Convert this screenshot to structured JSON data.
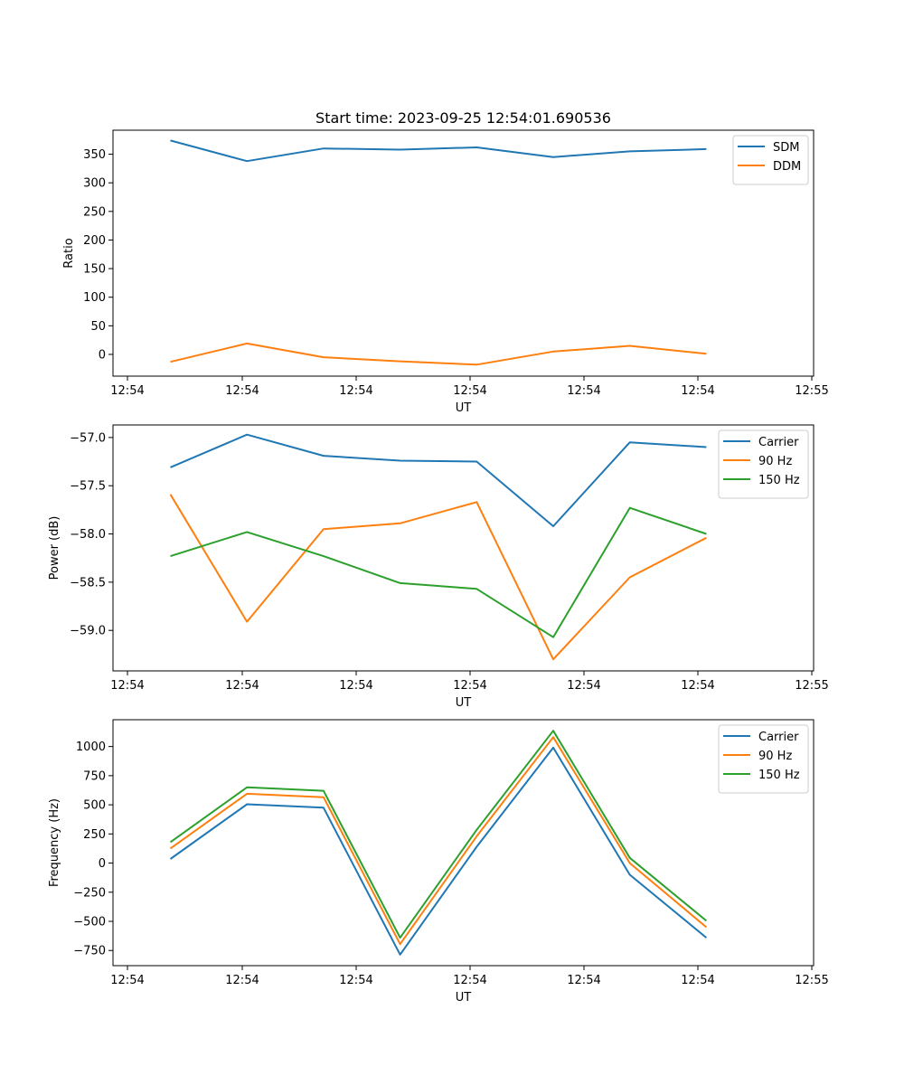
{
  "title": "Start time: 2023-09-25 12:54:01.690536",
  "chart_data": [
    {
      "type": "line",
      "xlabel": "UT",
      "ylabel": "Ratio",
      "xticks": [
        "12:54",
        "12:54",
        "12:54",
        "12:54",
        "12:54",
        "12:54",
        "12:55"
      ],
      "xlim": [
        -0.75,
        8.4
      ],
      "x": [
        0,
        1,
        2,
        3,
        4,
        5,
        6,
        7
      ],
      "ylim": [
        -38,
        392
      ],
      "yticks": [
        0,
        50,
        100,
        150,
        200,
        250,
        300,
        350
      ],
      "legend_position": "top-right",
      "series": [
        {
          "name": "SDM",
          "color": "#1f77b4",
          "values": [
            374,
            338,
            360,
            358,
            362,
            345,
            355,
            359
          ]
        },
        {
          "name": "DDM",
          "color": "#ff7f0e",
          "values": [
            -13,
            19,
            -5,
            -12,
            -18,
            5,
            15,
            1
          ]
        }
      ]
    },
    {
      "type": "line",
      "xlabel": "UT",
      "ylabel": "Power (dB)",
      "xticks": [
        "12:54",
        "12:54",
        "12:54",
        "12:54",
        "12:54",
        "12:54",
        "12:55"
      ],
      "xlim": [
        -0.75,
        8.4
      ],
      "x": [
        0,
        1,
        2,
        3,
        4,
        5,
        6,
        7
      ],
      "ylim": [
        -59.42,
        -56.87
      ],
      "yticks": [
        -59.0,
        -58.5,
        -58.0,
        -57.5,
        -57.0
      ],
      "ytick_labels": [
        "−59.0",
        "−58.5",
        "−58.0",
        "−57.5",
        "−57.0"
      ],
      "legend_position": "top-right",
      "series": [
        {
          "name": "Carrier",
          "color": "#1f77b4",
          "values": [
            -57.31,
            -56.97,
            -57.19,
            -57.24,
            -57.25,
            -57.92,
            -57.05,
            -57.1
          ]
        },
        {
          "name": "90 Hz",
          "color": "#ff7f0e",
          "values": [
            -57.59,
            -58.91,
            -57.95,
            -57.89,
            -57.67,
            -59.3,
            -58.45,
            -58.04
          ]
        },
        {
          "name": "150 Hz",
          "color": "#2ca02c",
          "values": [
            -58.23,
            -57.98,
            -58.23,
            -58.51,
            -58.57,
            -59.07,
            -57.73,
            -58.0
          ]
        }
      ]
    },
    {
      "type": "line",
      "xlabel": "UT",
      "ylabel": "Frequency (Hz)",
      "xticks": [
        "12:54",
        "12:54",
        "12:54",
        "12:54",
        "12:54",
        "12:54",
        "12:55"
      ],
      "xlim": [
        -0.75,
        8.4
      ],
      "x": [
        0,
        1,
        2,
        3,
        4,
        5,
        6,
        7
      ],
      "ylim": [
        -880,
        1230
      ],
      "yticks": [
        -750,
        -500,
        -250,
        0,
        250,
        500,
        750,
        1000
      ],
      "ytick_labels": [
        "−750",
        "−500",
        "−250",
        "0",
        "250",
        "500",
        "750",
        "1000"
      ],
      "legend_position": "top-right",
      "series": [
        {
          "name": "Carrier",
          "color": "#1f77b4",
          "values": [
            35,
            505,
            475,
            -785,
            140,
            990,
            -100,
            -640
          ]
        },
        {
          "name": "90 Hz",
          "color": "#ff7f0e",
          "values": [
            125,
            595,
            565,
            -695,
            230,
            1080,
            0,
            -550
          ]
        },
        {
          "name": "150 Hz",
          "color": "#2ca02c",
          "values": [
            180,
            650,
            620,
            -640,
            285,
            1135,
            45,
            -495
          ]
        }
      ]
    }
  ]
}
